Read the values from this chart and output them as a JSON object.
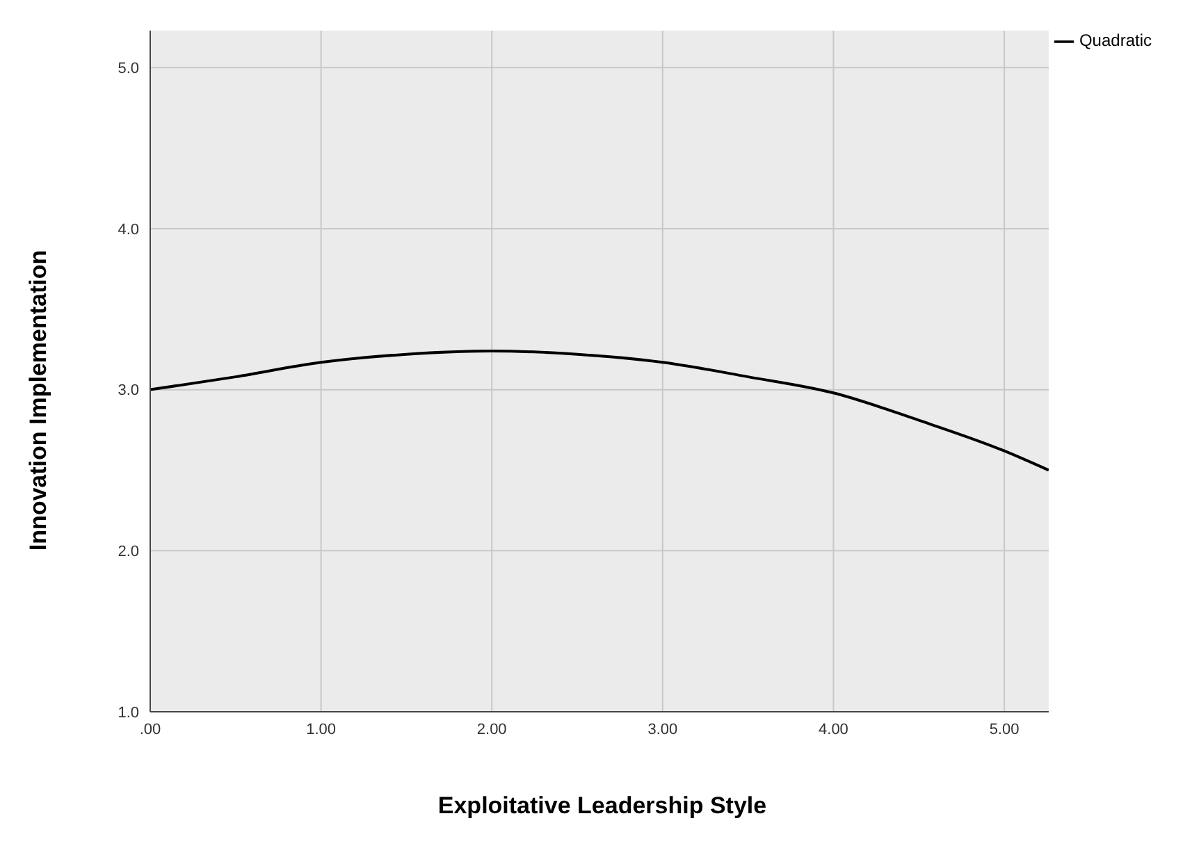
{
  "chart_data": {
    "type": "line",
    "xlabel": "Exploitative Leadership Style",
    "ylabel": "Innovation Implementation",
    "x": [
      0,
      0.5,
      1,
      1.5,
      2,
      2.5,
      3,
      3.5,
      4,
      4.5,
      5,
      5.26
    ],
    "series": [
      {
        "name": "Quadratic",
        "color": "#000000",
        "values": [
          3.0,
          3.08,
          3.17,
          3.22,
          3.24,
          3.22,
          3.17,
          3.08,
          2.98,
          2.81,
          2.62,
          2.5
        ]
      }
    ],
    "xlim": [
      0,
      5.26
    ],
    "ylim": [
      1,
      5.23
    ],
    "xticks": [
      {
        "value": 0,
        "label": ".00"
      },
      {
        "value": 1,
        "label": "1.00"
      },
      {
        "value": 2,
        "label": "2.00"
      },
      {
        "value": 3,
        "label": "3.00"
      },
      {
        "value": 4,
        "label": "4.00"
      },
      {
        "value": 5,
        "label": "5.00"
      }
    ],
    "yticks": [
      {
        "value": 1,
        "label": "1.0"
      },
      {
        "value": 2,
        "label": "2.0"
      },
      {
        "value": 3,
        "label": "3.0"
      },
      {
        "value": 4,
        "label": "4.0"
      },
      {
        "value": 5,
        "label": "5.0"
      }
    ],
    "grid": true,
    "legend": "top right",
    "marker": "none",
    "line_style": "solid"
  }
}
